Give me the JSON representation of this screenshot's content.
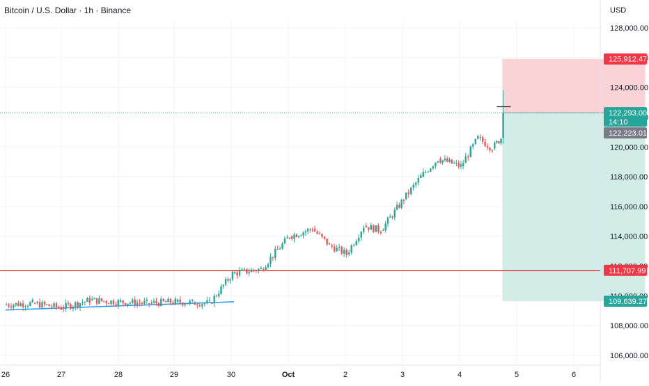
{
  "header": {
    "title": "Bitcoin / U.S. Dollar · 1h · Binance",
    "currency": "USD"
  },
  "colors": {
    "up": "#26a69a",
    "down": "#ef5350",
    "stop_zone": "#f7c4c8",
    "target_zone": "#cdebe4",
    "support_line": "#e53935",
    "trend_line": "#2196f3",
    "current_price_label": "#26a69a",
    "stop_label": "#f23645",
    "target_label": "#26a69a",
    "gray_label": "#787b86"
  },
  "chart_data": {
    "type": "candlestick",
    "symbol": "Bitcoin / U.S. Dollar",
    "interval": "1h",
    "exchange": "Binance",
    "x_ticks": [
      "26",
      "27",
      "28",
      "29",
      "30",
      "Oct",
      "2",
      "3",
      "4",
      "5",
      "6"
    ],
    "y_ticks": [
      "106,000.00",
      "108,000.00",
      "110,000.00",
      "112,000.00",
      "114,000.00",
      "116,000.00",
      "118,000.00",
      "120,000.00",
      "122,000.00",
      "124,000.00",
      "126,000.00",
      "128,000.00"
    ],
    "y_range": [
      105500,
      129000
    ],
    "price_labels": {
      "current": "122,293.00",
      "countdown": "14:10",
      "stop": "125,912.47",
      "gray": "122,223.01",
      "support": "111,707.99",
      "target": "109,639.27"
    },
    "levels": {
      "current": 122293.0,
      "stop": 125912.47,
      "gray": 122223.01,
      "support": 111707.99,
      "target": 109639.27
    },
    "trendline": [
      {
        "day": 25.0,
        "price": 109050
      },
      {
        "day": 29.0,
        "price": 109600
      }
    ],
    "position_tool": {
      "type": "short",
      "start_day": 33.7,
      "end_day": 36.2,
      "entry": 122293.0,
      "stop": 125912.47,
      "target": 109639.27
    },
    "candles_daily": [
      {
        "day": 25.0,
        "open": 109400,
        "close": 109500,
        "high": 109850,
        "low": 108950
      },
      {
        "day": 25.5,
        "open": 109500,
        "close": 109200,
        "high": 109900,
        "low": 108800
      },
      {
        "day": 26.0,
        "open": 109200,
        "close": 109700,
        "high": 110200,
        "low": 109000
      },
      {
        "day": 26.5,
        "open": 109700,
        "close": 109600,
        "high": 110400,
        "low": 109300
      },
      {
        "day": 27.0,
        "open": 109600,
        "close": 109500,
        "high": 109900,
        "low": 109300
      },
      {
        "day": 27.5,
        "open": 109500,
        "close": 109600,
        "high": 109800,
        "low": 109300
      },
      {
        "day": 28.0,
        "open": 109600,
        "close": 109550,
        "high": 109900,
        "low": 109350
      },
      {
        "day": 28.3,
        "open": 109550,
        "close": 109500,
        "high": 109800,
        "low": 109300
      },
      {
        "day": 28.6,
        "open": 109500,
        "close": 111500,
        "high": 112000,
        "low": 109350
      },
      {
        "day": 29.0,
        "open": 111500,
        "close": 111800,
        "high": 112200,
        "low": 111500
      },
      {
        "day": 29.5,
        "open": 111800,
        "close": 114000,
        "high": 114300,
        "low": 111800
      },
      {
        "day": 30.0,
        "open": 114000,
        "close": 114500,
        "high": 114800,
        "low": 113800
      },
      {
        "day": 30.4,
        "open": 114500,
        "close": 113400,
        "high": 114700,
        "low": 113200
      },
      {
        "day": 30.7,
        "open": 113400,
        "close": 112800,
        "high": 113700,
        "low": 112600
      },
      {
        "day": 31.0,
        "open": 112800,
        "close": 114700,
        "high": 114900,
        "low": 112700
      },
      {
        "day": 31.3,
        "open": 114700,
        "close": 114400,
        "high": 114900,
        "low": 114100
      },
      {
        "day": 31.6,
        "open": 114400,
        "close": 116500,
        "high": 116800,
        "low": 114200
      },
      {
        "day": 32.0,
        "open": 116500,
        "close": 118000,
        "high": 118400,
        "low": 116300
      },
      {
        "day": 32.3,
        "open": 118000,
        "close": 119200,
        "high": 119600,
        "low": 117900
      },
      {
        "day": 32.6,
        "open": 119200,
        "close": 118700,
        "high": 119400,
        "low": 118400
      },
      {
        "day": 33.0,
        "open": 118700,
        "close": 120600,
        "high": 120900,
        "low": 118600
      },
      {
        "day": 33.3,
        "open": 120600,
        "close": 119900,
        "high": 120800,
        "low": 119700
      },
      {
        "day": 33.55,
        "open": 119900,
        "close": 120600,
        "high": 121000,
        "low": 119100
      },
      {
        "day": 33.7,
        "open": 120600,
        "close": 122300,
        "high": 123800,
        "low": 120200
      }
    ]
  }
}
